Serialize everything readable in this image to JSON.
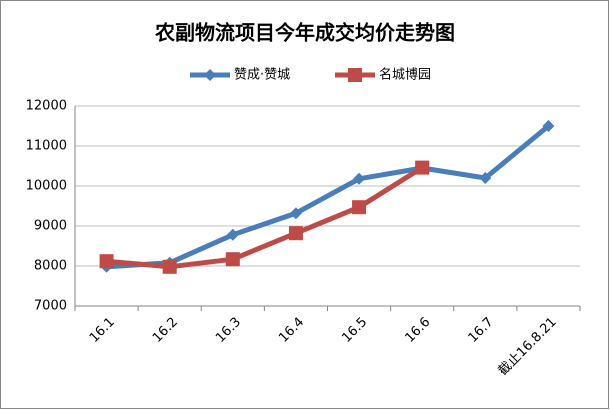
{
  "chart_data": {
    "type": "line",
    "title": "农副物流项目今年成交均价走势图",
    "categories": [
      "16.1",
      "16.2",
      "16.3",
      "16.4",
      "16.5",
      "16.6",
      "16.7",
      "截止16.8.21"
    ],
    "series": [
      {
        "name": "赞成·赞城",
        "color": "#4a7ebb",
        "values": [
          7980,
          8080,
          8780,
          9320,
          10180,
          10450,
          10200,
          11500
        ]
      },
      {
        "name": "名城博园",
        "color": "#be4b48",
        "values": [
          8120,
          7980,
          8170,
          8820,
          9470,
          10460,
          null,
          null
        ]
      }
    ],
    "ylim": [
      7000,
      12000
    ],
    "yticks": [
      7000,
      8000,
      9000,
      10000,
      11000,
      12000
    ],
    "grid": true,
    "legend": "top"
  }
}
